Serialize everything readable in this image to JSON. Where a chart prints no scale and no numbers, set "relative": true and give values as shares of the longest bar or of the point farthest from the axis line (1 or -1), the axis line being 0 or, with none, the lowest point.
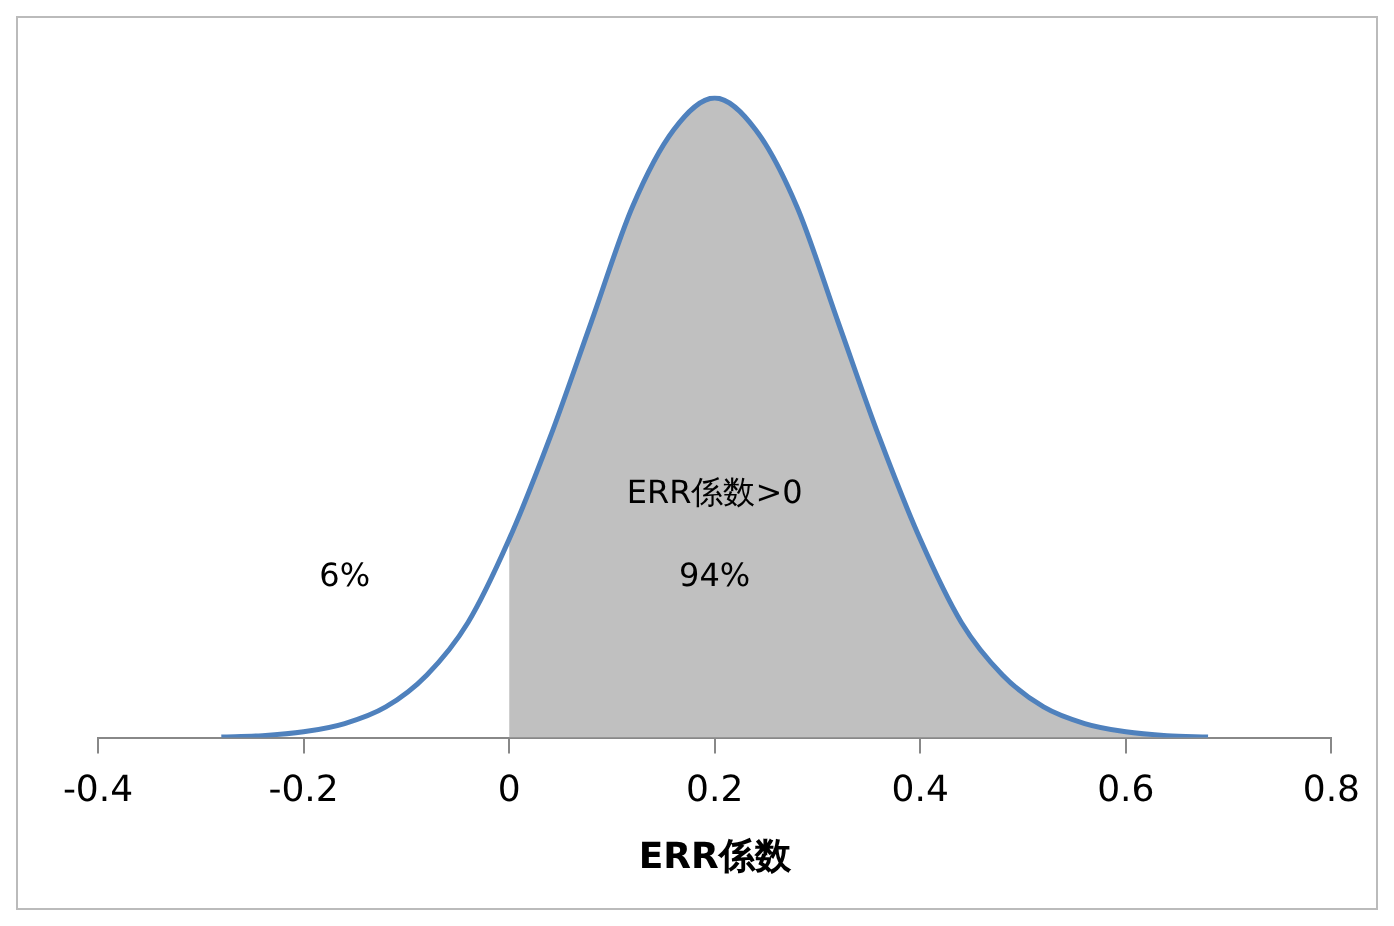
{
  "chart_data": {
    "type": "line",
    "relative": true,
    "xlabel": "ERR係数",
    "xlim": [
      -0.4,
      0.8
    ],
    "xticks": [
      -0.4,
      -0.2,
      0,
      0.2,
      0.4,
      0.6,
      0.8
    ],
    "grid": false,
    "legend": false,
    "marker": "none",
    "series": [
      {
        "type": "area",
        "color": "#c0c0c0",
        "x": [
          0,
          0.04,
          0.08,
          0.12,
          0.16,
          0.2,
          0.24,
          0.28,
          0.32,
          0.36,
          0.4,
          0.44,
          0.48,
          0.52,
          0.56,
          0.6,
          0.64,
          0.68
        ],
        "values": [
          0.31,
          0.47,
          0.65,
          0.83,
          0.95,
          1,
          0.95,
          0.83,
          0.65,
          0.47,
          0.31,
          0.18,
          0.098,
          0.048,
          0.022,
          0.009,
          0.003,
          0.001
        ]
      },
      {
        "type": "line",
        "color": "#4f81bd",
        "x": [
          -0.28,
          -0.24,
          -0.2,
          -0.16,
          -0.12,
          -0.08,
          -0.04,
          0,
          0.04,
          0.08,
          0.12,
          0.16,
          0.2,
          0.24,
          0.28,
          0.32,
          0.36,
          0.4,
          0.44,
          0.48,
          0.52,
          0.56,
          0.6,
          0.64,
          0.68
        ],
        "values": [
          0.001,
          0.003,
          0.009,
          0.022,
          0.048,
          0.098,
          0.18,
          0.31,
          0.47,
          0.65,
          0.83,
          0.95,
          1,
          0.95,
          0.83,
          0.65,
          0.47,
          0.31,
          0.18,
          0.098,
          0.048,
          0.022,
          0.009,
          0.003,
          0.001
        ]
      }
    ],
    "annotations": [
      "6%",
      "ERR係数>0",
      "94%"
    ]
  }
}
